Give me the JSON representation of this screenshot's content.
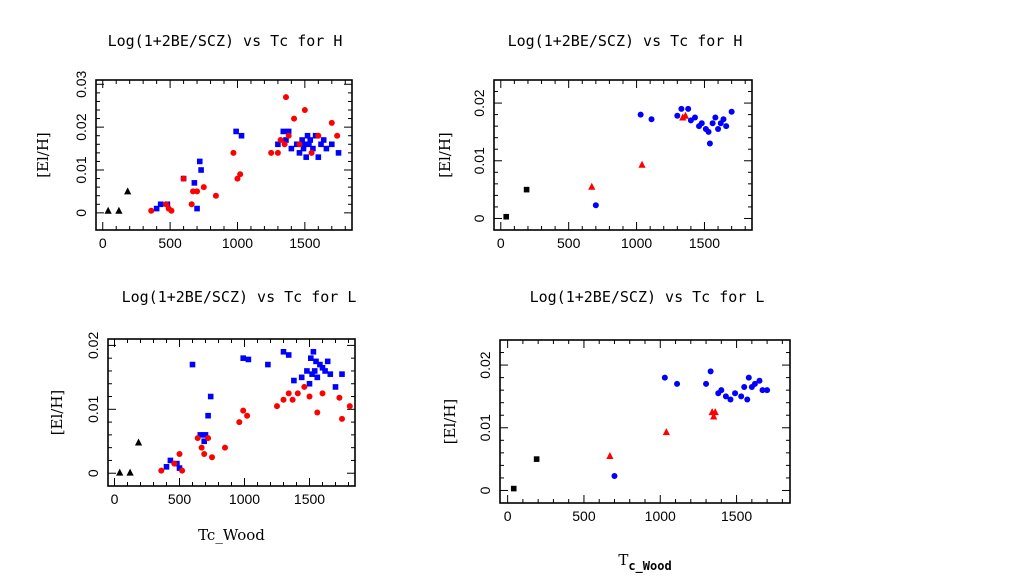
{
  "chart_data": [
    {
      "type": "scatter",
      "title": "Log(1+2BE/SCZ) vs Tc for  H",
      "xlabel": "",
      "ylabel": "[El/H]",
      "xlim": [
        -50,
        1850
      ],
      "ylim": [
        -0.004,
        0.031
      ],
      "xticks": [
        0,
        500,
        1000,
        1500
      ],
      "yticks": [
        0,
        0.01,
        0.02,
        0.03
      ],
      "ytick_labels": [
        "0",
        "0.01",
        "0.02",
        "0.03"
      ],
      "series": [
        {
          "name": "black",
          "marker": "triangle",
          "color": "#000000",
          "x": [
            40,
            120,
            185
          ],
          "y": [
            0.0005,
            0.0005,
            0.005
          ]
        },
        {
          "name": "blue",
          "marker": "square",
          "color": "#0000ff",
          "x": [
            400,
            430,
            480,
            600,
            680,
            700,
            720,
            730,
            990,
            1030,
            1300,
            1340,
            1360,
            1380,
            1400,
            1440,
            1460,
            1480,
            1490,
            1500,
            1510,
            1520,
            1530,
            1540,
            1560,
            1580,
            1600,
            1620,
            1640,
            1660,
            1700,
            1750
          ],
          "y": [
            0.001,
            0.002,
            0.002,
            0.008,
            0.007,
            0.001,
            0.012,
            0.01,
            0.019,
            0.018,
            0.016,
            0.019,
            0.017,
            0.019,
            0.015,
            0.016,
            0.014,
            0.017,
            0.015,
            0.016,
            0.013,
            0.018,
            0.016,
            0.017,
            0.015,
            0.018,
            0.013,
            0.016,
            0.017,
            0.015,
            0.016,
            0.014
          ]
        },
        {
          "name": "red",
          "marker": "circle",
          "color": "#ff0000",
          "x": [
            360,
            470,
            490,
            510,
            600,
            660,
            670,
            700,
            750,
            840,
            970,
            1000,
            1020,
            1250,
            1300,
            1320,
            1350,
            1360,
            1380,
            1420,
            1460,
            1500,
            1550,
            1600,
            1700,
            1740
          ],
          "y": [
            0.0005,
            0.002,
            0.001,
            0.0005,
            0.008,
            0.002,
            0.005,
            0.005,
            0.006,
            0.004,
            0.014,
            0.008,
            0.009,
            0.014,
            0.014,
            0.017,
            0.016,
            0.027,
            0.018,
            0.022,
            0.016,
            0.024,
            0.014,
            0.018,
            0.021,
            0.018
          ]
        }
      ]
    },
    {
      "type": "scatter",
      "title": "Log(1+2BE/SCZ) vs Tc for  H",
      "xlabel": "",
      "ylabel": "[El/H]",
      "xlim": [
        -50,
        1850
      ],
      "ylim": [
        -0.002,
        0.024
      ],
      "xticks": [
        0,
        500,
        1000,
        1500
      ],
      "yticks": [
        0,
        0.01,
        0.02
      ],
      "ytick_labels": [
        "0",
        "0.01",
        "0.02"
      ],
      "series": [
        {
          "name": "black",
          "marker": "square",
          "color": "#000000",
          "x": [
            40,
            190
          ],
          "y": [
            0.0003,
            0.005
          ]
        },
        {
          "name": "red",
          "marker": "triangle",
          "color": "#ff0000",
          "x": [
            670,
            1040,
            1340,
            1360
          ],
          "y": [
            0.0055,
            0.0093,
            0.0175,
            0.0178
          ]
        },
        {
          "name": "blue",
          "marker": "circle",
          "color": "#0000ff",
          "x": [
            700,
            1030,
            1110,
            1300,
            1330,
            1380,
            1400,
            1430,
            1460,
            1480,
            1510,
            1530,
            1540,
            1560,
            1580,
            1600,
            1620,
            1640,
            1660,
            1700
          ],
          "y": [
            0.0023,
            0.018,
            0.0172,
            0.0178,
            0.019,
            0.019,
            0.017,
            0.0175,
            0.016,
            0.0165,
            0.0155,
            0.015,
            0.013,
            0.0165,
            0.0175,
            0.0155,
            0.0165,
            0.0172,
            0.016,
            0.0185
          ]
        }
      ]
    },
    {
      "type": "scatter",
      "title": "Log(1+2BE/SCZ) vs Tc for  L",
      "xlabel": "Tc_Wood",
      "ylabel": "[El/H]",
      "xlim": [
        -50,
        1850
      ],
      "ylim": [
        -0.002,
        0.021
      ],
      "xticks": [
        0,
        500,
        1000,
        1500
      ],
      "yticks": [
        0,
        0.01,
        0.02
      ],
      "ytick_labels": [
        "0",
        "0.01",
        "0.02"
      ],
      "series": [
        {
          "name": "black",
          "marker": "triangle",
          "color": "#000000",
          "x": [
            40,
            120,
            185
          ],
          "y": [
            0.0001,
            0.0001,
            0.0048
          ]
        },
        {
          "name": "blue",
          "marker": "square",
          "color": "#0000ff",
          "x": [
            400,
            430,
            480,
            500,
            600,
            660,
            690,
            700,
            720,
            740,
            990,
            1030,
            1180,
            1300,
            1340,
            1380,
            1440,
            1480,
            1500,
            1510,
            1520,
            1530,
            1540,
            1550,
            1560,
            1580,
            1600,
            1620,
            1640,
            1660,
            1700,
            1750
          ],
          "y": [
            0.001,
            0.002,
            0.0015,
            0.0008,
            0.017,
            0.006,
            0.005,
            0.006,
            0.009,
            0.012,
            0.018,
            0.0178,
            0.017,
            0.019,
            0.0185,
            0.0145,
            0.015,
            0.016,
            0.014,
            0.018,
            0.0155,
            0.019,
            0.016,
            0.0175,
            0.015,
            0.017,
            0.0165,
            0.016,
            0.0175,
            0.0155,
            0.0135,
            0.0155
          ]
        },
        {
          "name": "red",
          "marker": "circle",
          "color": "#ff0000",
          "x": [
            360,
            460,
            500,
            520,
            640,
            670,
            690,
            720,
            750,
            850,
            960,
            990,
            1020,
            1250,
            1300,
            1340,
            1370,
            1410,
            1460,
            1500,
            1560,
            1600,
            1730,
            1750,
            1810
          ],
          "y": [
            0.0004,
            0.0015,
            0.003,
            0.0004,
            0.0055,
            0.004,
            0.003,
            0.0055,
            0.0025,
            0.004,
            0.008,
            0.0098,
            0.009,
            0.0105,
            0.0115,
            0.0125,
            0.0115,
            0.0125,
            0.0135,
            0.012,
            0.0095,
            0.0125,
            0.0118,
            0.0085,
            0.0105
          ]
        }
      ]
    },
    {
      "type": "scatter",
      "title": "Log(1+2BE/SCZ) vs Tc for  L",
      "xlabel": "T",
      "xlabel_sub": "c_Wood",
      "ylabel": "[El/H]",
      "xlim": [
        -50,
        1850
      ],
      "ylim": [
        -0.002,
        0.024
      ],
      "xticks": [
        0,
        500,
        1000,
        1500
      ],
      "yticks": [
        0,
        0.01,
        0.02
      ],
      "ytick_labels": [
        "0",
        "0.01",
        "0.02"
      ],
      "series": [
        {
          "name": "black",
          "marker": "square",
          "color": "#000000",
          "x": [
            40,
            190
          ],
          "y": [
            0.0003,
            0.005
          ]
        },
        {
          "name": "red",
          "marker": "triangle",
          "color": "#ff0000",
          "x": [
            670,
            1040,
            1340,
            1360,
            1350
          ],
          "y": [
            0.0055,
            0.0093,
            0.0125,
            0.0125,
            0.0118
          ]
        },
        {
          "name": "blue",
          "marker": "circle",
          "color": "#0000ff",
          "x": [
            700,
            1030,
            1110,
            1300,
            1330,
            1380,
            1400,
            1430,
            1460,
            1490,
            1530,
            1550,
            1570,
            1580,
            1600,
            1620,
            1650,
            1670,
            1700
          ],
          "y": [
            0.0023,
            0.018,
            0.017,
            0.017,
            0.019,
            0.0155,
            0.016,
            0.015,
            0.0145,
            0.0155,
            0.015,
            0.0165,
            0.0145,
            0.018,
            0.0165,
            0.017,
            0.0175,
            0.016,
            0.016
          ]
        }
      ]
    }
  ]
}
